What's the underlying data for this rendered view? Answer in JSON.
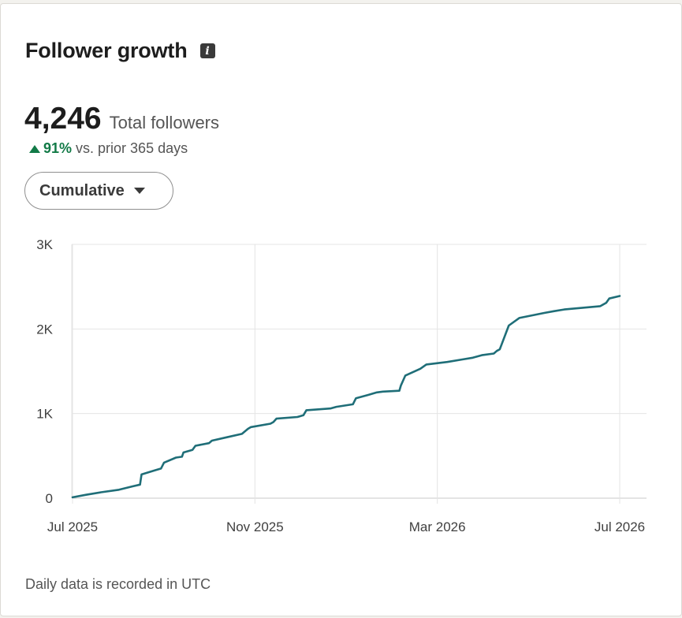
{
  "header": {
    "title": "Follower growth",
    "info_icon": "info-icon"
  },
  "summary": {
    "total": "4,246",
    "total_label": "Total followers",
    "change_pct": "91%",
    "change_label": "vs. prior 365 days",
    "change_icon": "triangle-up-icon",
    "positive_color": "#127a47"
  },
  "view_selector": {
    "selected": "Cumulative",
    "icon": "caret-down-icon"
  },
  "footnote": "Daily data is recorded in UTC",
  "chart_data": {
    "type": "line",
    "title": "",
    "xlabel": "",
    "ylabel": "",
    "x_ticks": [
      "Jul 2025",
      "Nov 2025",
      "Mar 2026",
      "Jul 2026"
    ],
    "y_ticks": [
      "0",
      "1K",
      "2K",
      "3K"
    ],
    "y_tick_values": [
      0,
      1000,
      2000,
      3000
    ],
    "ylim": [
      0,
      3000
    ],
    "xlim": [
      "2025-07-01",
      "2026-07-01"
    ],
    "grid": true,
    "line_color": "#1f6e78",
    "series": [
      {
        "x": [
          "2025-07-01",
          "2025-07-10",
          "2025-07-20",
          "2025-08-01",
          "2025-08-10",
          "2025-08-15",
          "2025-08-16",
          "2025-08-25",
          "2025-08-29",
          "2025-08-31",
          "2025-09-08",
          "2025-09-12",
          "2025-09-13",
          "2025-09-19",
          "2025-09-21",
          "2025-09-30",
          "2025-10-02",
          "2025-10-12",
          "2025-10-22",
          "2025-10-26",
          "2025-10-28",
          "2025-11-10",
          "2025-11-12",
          "2025-11-14",
          "2025-11-28",
          "2025-12-02",
          "2025-12-04",
          "2025-12-20",
          "2025-12-24",
          "2026-01-04",
          "2026-01-06",
          "2026-01-14",
          "2026-01-20",
          "2026-01-24",
          "2026-02-04",
          "2026-02-05",
          "2026-02-08",
          "2026-02-18",
          "2026-02-22",
          "2026-03-08",
          "2026-03-18",
          "2026-03-25",
          "2026-03-31",
          "2026-04-08",
          "2026-04-10",
          "2026-04-12",
          "2026-04-18",
          "2026-04-25",
          "2026-05-12",
          "2026-05-18",
          "2026-05-25",
          "2026-06-18",
          "2026-06-22",
          "2026-06-24",
          "2026-07-01"
        ],
        "y": [
          10,
          40,
          70,
          100,
          140,
          160,
          280,
          330,
          350,
          420,
          480,
          490,
          540,
          570,
          620,
          650,
          680,
          720,
          760,
          820,
          840,
          880,
          900,
          940,
          960,
          980,
          1040,
          1060,
          1080,
          1110,
          1180,
          1220,
          1250,
          1260,
          1270,
          1330,
          1450,
          1530,
          1580,
          1610,
          1640,
          1660,
          1690,
          1710,
          1740,
          1760,
          2040,
          2130,
          2190,
          2210,
          2230,
          2270,
          2310,
          2360,
          2390
        ]
      }
    ]
  }
}
